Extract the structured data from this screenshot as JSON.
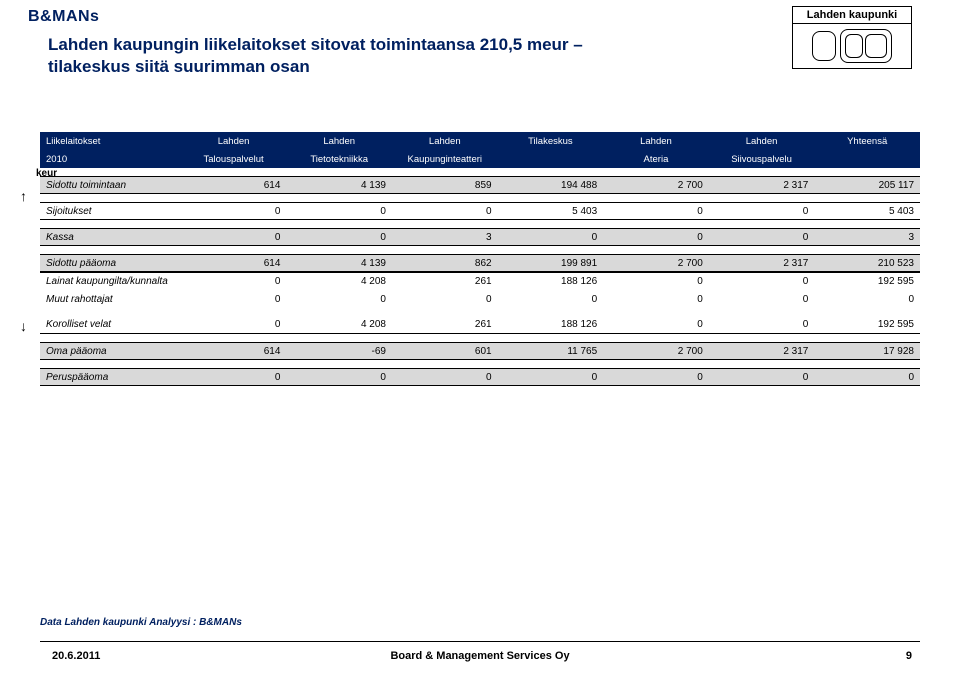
{
  "logo": "B&MANs",
  "top_box": {
    "title": "Lahden kaupunki"
  },
  "title": {
    "line1": "Lahden kaupungin liikelaitokset sitovat toimintaansa 210,5 meur –",
    "line2": "tilakeskus siitä suurimman osan"
  },
  "headers": {
    "col0a": "Liikelaitokset",
    "col0b": "2010",
    "col0c": "keur",
    "c1a": "Lahden",
    "c1b": "Talouspalvelut",
    "c2a": "Lahden",
    "c2b": "Tietotekniikka",
    "c3a": "Lahden",
    "c3b": "Kaupunginteatteri",
    "c4a": "Tilakeskus",
    "c4b": "",
    "c5a": "Lahden",
    "c5b": "Ateria",
    "c6a": "Lahden",
    "c6b": "Siivouspalvelu",
    "c7a": "Yhteensä",
    "c7b": ""
  },
  "rows": [
    {
      "shaded": true,
      "label": "Sidottu toimintaan",
      "v": [
        "614",
        "4 139",
        "859",
        "194 488",
        "2 700",
        "2 317",
        "205 117"
      ]
    },
    {
      "shaded": false,
      "label": "Sijoitukset",
      "v": [
        "0",
        "0",
        "0",
        "5 403",
        "0",
        "0",
        "5 403"
      ]
    },
    {
      "shaded": true,
      "label": "Kassa",
      "v": [
        "0",
        "0",
        "3",
        "0",
        "0",
        "0",
        "3"
      ]
    },
    {
      "shaded": true,
      "label": "Sidottu pääoma",
      "v": [
        "614",
        "4 139",
        "862",
        "199 891",
        "2 700",
        "2 317",
        "210 523"
      ]
    },
    {
      "shaded": false,
      "label": "Lainat kaupungilta/kunnalta",
      "v": [
        "0",
        "4 208",
        "261",
        "188 126",
        "0",
        "0",
        "192 595"
      ],
      "noborder": "top"
    },
    {
      "shaded": false,
      "label": "Muut rahottajat",
      "v": [
        "0",
        "0",
        "0",
        "0",
        "0",
        "0",
        "0"
      ],
      "noborder": "mid"
    },
    {
      "shaded": false,
      "label": "Korolliset velat",
      "v": [
        "0",
        "4 208",
        "261",
        "188 126",
        "0",
        "0",
        "192 595"
      ],
      "noborder": "bot"
    },
    {
      "shaded": true,
      "label": "Oma pääoma",
      "v": [
        "614",
        "-69",
        "601",
        "11 765",
        "2 700",
        "2 317",
        "17 928"
      ]
    },
    {
      "shaded": true,
      "label": "Peruspääoma",
      "v": [
        "0",
        "0",
        "0",
        "0",
        "0",
        "0",
        "0"
      ]
    }
  ],
  "footer": {
    "source": "Data Lahden kaupunki   Analyysi : B&MANs",
    "date": "20.6.2011",
    "center": "Board & Management Services Oy",
    "page": "9"
  },
  "colors": {
    "brand": "#002060",
    "shade": "#d9d9d9"
  }
}
